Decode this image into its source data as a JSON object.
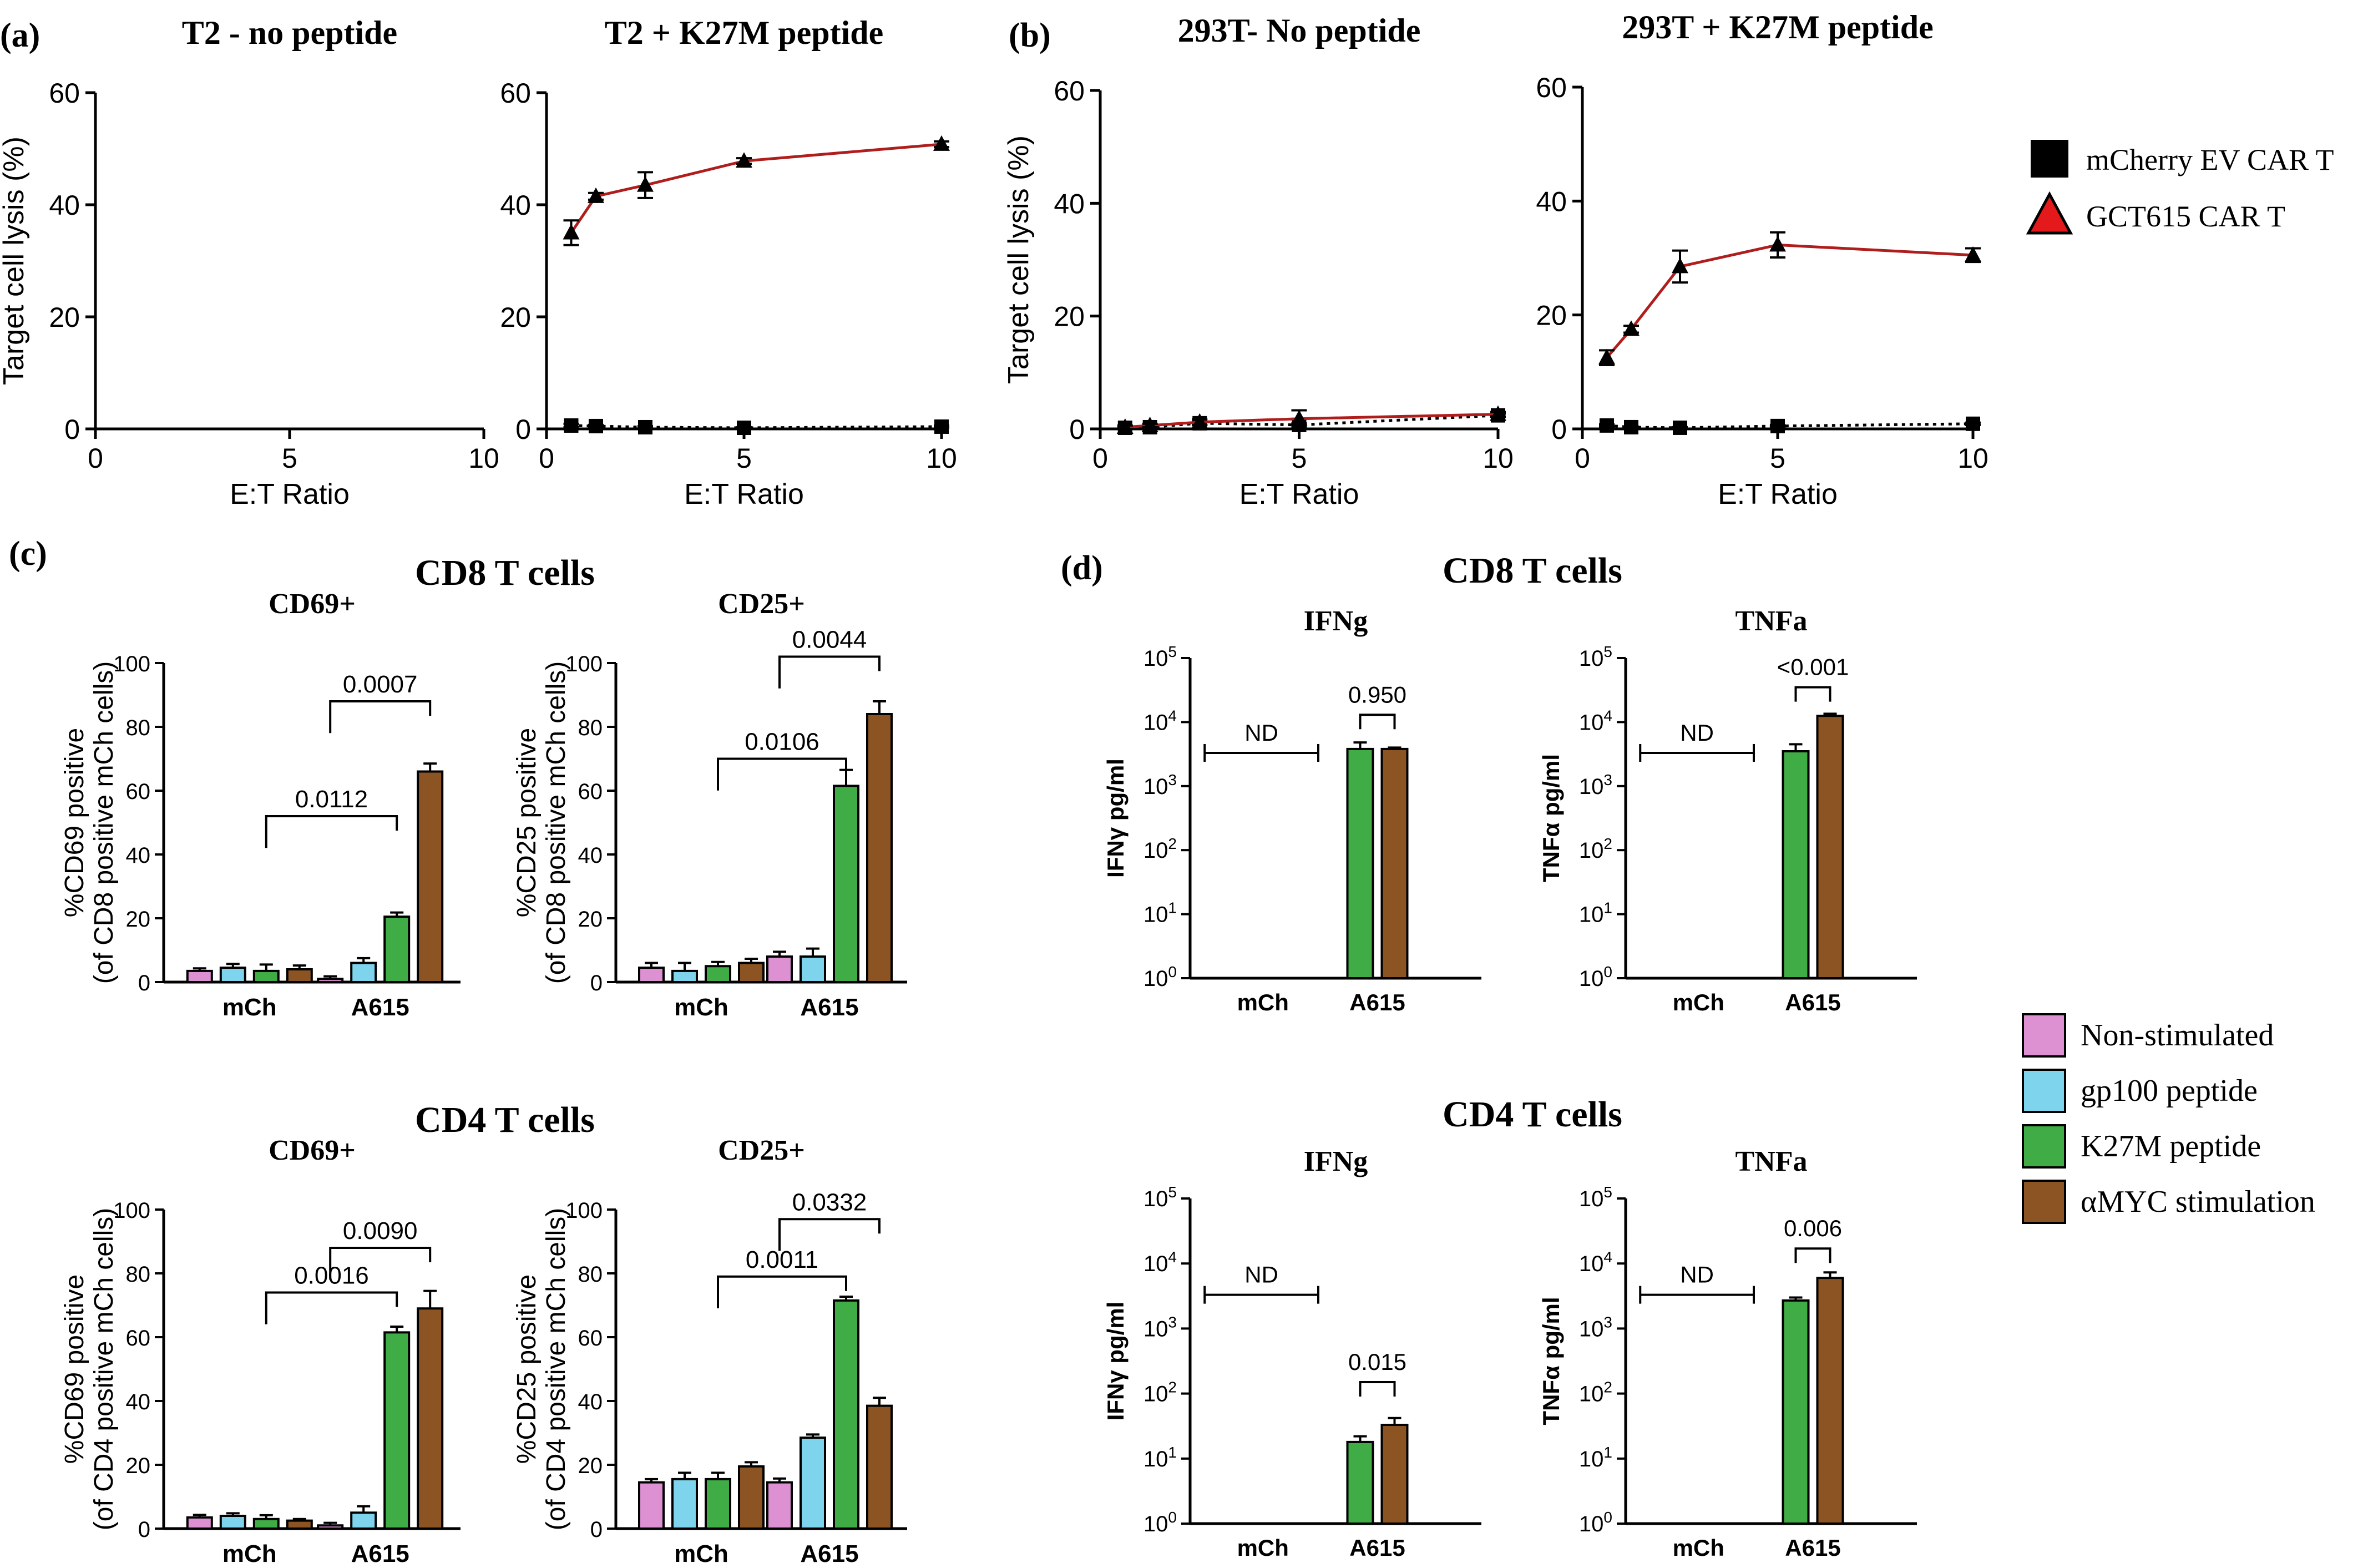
{
  "panel_labels": {
    "a": "(a)",
    "b": "(b)",
    "c": "(c)",
    "d": "(d)"
  },
  "section_titles": {
    "c_cd8": "CD8 T cells",
    "c_cd4": "CD4 T cells",
    "d_cd8": "CD8 T cells",
    "d_cd4": "CD4 T cells"
  },
  "legend_lysis": {
    "items": [
      {
        "label": "mCherry EV CAR T",
        "marker": "square",
        "color": "#000000"
      },
      {
        "label": "GCT615 CAR T",
        "marker": "triangle",
        "color": "#e3191b"
      }
    ]
  },
  "legend_groups": {
    "items": [
      {
        "label": "Non-stimulated",
        "color": "#dd90d2"
      },
      {
        "label": "gp100 peptide",
        "color": "#7dd4ec"
      },
      {
        "label": "K27M peptide",
        "color": "#3fac46"
      },
      {
        "label": "αMYC stimulation",
        "color": "#8b5422"
      }
    ]
  },
  "colors": {
    "red_line": "#b01d1d",
    "black": "#000000"
  },
  "chart_data": [
    {
      "id": "a1",
      "type": "line",
      "title": "T2 - no peptide",
      "xlabel": "E:T Ratio",
      "ylabel": "Target cell lysis (%)",
      "xlim": [
        0,
        10
      ],
      "ylim": [
        0,
        60
      ],
      "xticks": [
        0,
        5,
        10
      ],
      "yticks": [
        0,
        20,
        40,
        60
      ],
      "series": []
    },
    {
      "id": "a2",
      "type": "line",
      "title": "T2 + K27M peptide",
      "xlabel": "E:T Ratio",
      "ylabel": "",
      "xlim": [
        0,
        10
      ],
      "ylim": [
        0,
        60
      ],
      "xticks": [
        0,
        5,
        10
      ],
      "yticks": [
        0,
        20,
        40,
        60
      ],
      "series": [
        {
          "name": "GCT615 CAR T",
          "marker": "triangle",
          "line": "solid",
          "color": "#b01d1d",
          "x": [
            0.625,
            1.25,
            2.5,
            5,
            10
          ],
          "y": [
            35,
            41.5,
            43.5,
            47.8,
            50.8
          ],
          "err": [
            2.2,
            0.6,
            2.3,
            0.5,
            0.5
          ]
        },
        {
          "name": "mCherry EV CAR T",
          "marker": "square",
          "line": "dotted",
          "color": "#000000",
          "x": [
            0.625,
            1.25,
            2.5,
            5,
            10
          ],
          "y": [
            0.6,
            0.5,
            0.3,
            0.2,
            0.4
          ],
          "err": [
            0.3,
            0.2,
            0.2,
            0.1,
            0.2
          ]
        }
      ]
    },
    {
      "id": "b1",
      "type": "line",
      "title": "293T- No peptide",
      "xlabel": "E:T Ratio",
      "ylabel": "Target cell lysis (%)",
      "xlim": [
        0,
        10
      ],
      "ylim": [
        0,
        60
      ],
      "xticks": [
        0,
        5,
        10
      ],
      "yticks": [
        0,
        20,
        40,
        60
      ],
      "series": [
        {
          "name": "GCT615 CAR T",
          "marker": "triangle",
          "line": "solid",
          "color": "#b01d1d",
          "x": [
            0.625,
            1.25,
            2.5,
            5,
            10
          ],
          "y": [
            0.3,
            0.6,
            1.2,
            1.8,
            2.6
          ],
          "err": [
            0.3,
            0.3,
            0.5,
            1.5,
            0.4
          ]
        },
        {
          "name": "mCherry EV CAR T",
          "marker": "square",
          "line": "dotted",
          "color": "#000000",
          "x": [
            0.625,
            1.25,
            2.5,
            5,
            10
          ],
          "y": [
            0.2,
            0.3,
            1.0,
            0.7,
            2.4
          ],
          "err": [
            0.2,
            0.2,
            0.3,
            0.3,
            0.3
          ]
        }
      ]
    },
    {
      "id": "b2",
      "type": "line",
      "title": "293T + K27M peptide",
      "xlabel": "E:T Ratio",
      "ylabel": "",
      "xlim": [
        0,
        10
      ],
      "ylim": [
        0,
        60
      ],
      "xticks": [
        0,
        5,
        10
      ],
      "yticks": [
        0,
        20,
        40,
        60
      ],
      "series": [
        {
          "name": "GCT615 CAR T",
          "marker": "triangle",
          "line": "solid",
          "color": "#b01d1d",
          "x": [
            0.625,
            1.25,
            2.5,
            5,
            10
          ],
          "y": [
            12.5,
            17.5,
            28.5,
            32.3,
            30.5
          ],
          "err": [
            1.3,
            0.6,
            2.8,
            2.2,
            1.2
          ]
        },
        {
          "name": "mCherry EV CAR T",
          "marker": "square",
          "line": "dotted",
          "color": "#000000",
          "x": [
            0.625,
            1.25,
            2.5,
            5,
            10
          ],
          "y": [
            0.6,
            0.3,
            0.2,
            0.5,
            0.9
          ],
          "err": [
            0.2,
            0.1,
            0.1,
            0.2,
            0.2
          ]
        }
      ]
    },
    {
      "id": "c1",
      "type": "bar",
      "title": "CD69+",
      "ylabel": "%CD69 positive",
      "ylabel2": "(of CD8 positive mCh cells)",
      "ylim": [
        0,
        100
      ],
      "yticks": [
        0,
        20,
        40,
        60,
        80,
        100
      ],
      "categories": [
        "mCh",
        "A615"
      ],
      "series": [
        {
          "name": "Non-stimulated",
          "values": [
            3.5,
            1.0
          ],
          "err": [
            0.8,
            0.8
          ]
        },
        {
          "name": "gp100 peptide",
          "values": [
            4.5,
            6.0
          ],
          "err": [
            1.2,
            1.5
          ]
        },
        {
          "name": "K27M peptide",
          "values": [
            3.5,
            20.5
          ],
          "err": [
            2.0,
            1.3
          ]
        },
        {
          "name": "αMYC stimulation",
          "values": [
            4.0,
            66.0
          ],
          "err": [
            1.2,
            2.5
          ]
        }
      ],
      "brackets": [
        {
          "from": [
            0,
            2
          ],
          "to": [
            1,
            2
          ],
          "label": "0.0112",
          "level": 52
        },
        {
          "from": [
            1,
            0
          ],
          "to": [
            1,
            3
          ],
          "label": "0.0007",
          "level": 88
        }
      ]
    },
    {
      "id": "c2",
      "type": "bar",
      "title": "CD25+",
      "ylabel": "%CD25 positive",
      "ylabel2": "(of CD8 positive mCh cells)",
      "ylim": [
        0,
        100
      ],
      "yticks": [
        0,
        20,
        40,
        60,
        80,
        100
      ],
      "categories": [
        "mCh",
        "A615"
      ],
      "series": [
        {
          "name": "Non-stimulated",
          "values": [
            4.5,
            8.0
          ],
          "err": [
            1.5,
            1.5
          ]
        },
        {
          "name": "gp100 peptide",
          "values": [
            3.5,
            8.0
          ],
          "err": [
            2.5,
            2.5
          ]
        },
        {
          "name": "K27M peptide",
          "values": [
            5.0,
            61.5
          ],
          "err": [
            1.3,
            5.0
          ]
        },
        {
          "name": "αMYC stimulation",
          "values": [
            6.0,
            84.0
          ],
          "err": [
            1.3,
            4.0
          ]
        }
      ],
      "brackets": [
        {
          "from": [
            0,
            2
          ],
          "to": [
            1,
            2
          ],
          "label": "0.0106",
          "level": 70
        },
        {
          "from": [
            1,
            0
          ],
          "to": [
            1,
            3
          ],
          "label": "0.0044",
          "level": 102
        }
      ]
    },
    {
      "id": "c3",
      "type": "bar",
      "title": "CD69+",
      "ylabel": "%CD69 positive",
      "ylabel2": "(of CD4 positive mCh cells)",
      "ylim": [
        0,
        100
      ],
      "yticks": [
        0,
        20,
        40,
        60,
        80,
        100
      ],
      "categories": [
        "mCh",
        "A615"
      ],
      "series": [
        {
          "name": "Non-stimulated",
          "values": [
            3.5,
            1.0
          ],
          "err": [
            0.8,
            0.8
          ]
        },
        {
          "name": "gp100 peptide",
          "values": [
            4.0,
            5.0
          ],
          "err": [
            0.8,
            2.0
          ]
        },
        {
          "name": "K27M peptide",
          "values": [
            3.0,
            61.5
          ],
          "err": [
            1.2,
            1.8
          ]
        },
        {
          "name": "αMYC stimulation",
          "values": [
            2.5,
            69.0
          ],
          "err": [
            0.5,
            5.5
          ]
        }
      ],
      "brackets": [
        {
          "from": [
            0,
            2
          ],
          "to": [
            1,
            2
          ],
          "label": "0.0016",
          "level": 74
        },
        {
          "from": [
            1,
            0
          ],
          "to": [
            1,
            3
          ],
          "label": "0.0090",
          "level": 88
        }
      ]
    },
    {
      "id": "c4",
      "type": "bar",
      "title": "CD25+",
      "ylabel": "%CD25 positive",
      "ylabel2": "(of CD4 positive mCh cells)",
      "ylim": [
        0,
        100
      ],
      "yticks": [
        0,
        20,
        40,
        60,
        80,
        100
      ],
      "categories": [
        "mCh",
        "A615"
      ],
      "series": [
        {
          "name": "Non-stimulated",
          "values": [
            14.5,
            14.5
          ],
          "err": [
            1.0,
            1.2
          ]
        },
        {
          "name": "gp100 peptide",
          "values": [
            15.5,
            28.5
          ],
          "err": [
            2.0,
            1.0
          ]
        },
        {
          "name": "K27M peptide",
          "values": [
            15.5,
            71.5
          ],
          "err": [
            2.0,
            1.2
          ]
        },
        {
          "name": "αMYC stimulation",
          "values": [
            19.5,
            38.5
          ],
          "err": [
            1.3,
            2.5
          ]
        }
      ],
      "brackets": [
        {
          "from": [
            0,
            2
          ],
          "to": [
            1,
            2
          ],
          "label": "0.0011",
          "level": 79
        },
        {
          "from": [
            1,
            0
          ],
          "to": [
            1,
            3
          ],
          "label": "0.0332",
          "level": 97
        }
      ]
    },
    {
      "id": "d1",
      "type": "bar",
      "scale": "log",
      "title": "IFNg",
      "ylabel": "IFNγ pg/ml",
      "ylim_exp": [
        0,
        5
      ],
      "yticks_exp": [
        0,
        1,
        2,
        3,
        4,
        5
      ],
      "categories": [
        "mCh",
        "A615"
      ],
      "series": [
        {
          "name": "K27M peptide",
          "values": [
            null,
            3800
          ],
          "err_hi": [
            null,
            4800
          ]
        },
        {
          "name": "αMYC stimulation",
          "values": [
            null,
            3800
          ],
          "err_hi": [
            null,
            4000
          ]
        }
      ],
      "nd": {
        "label": "ND",
        "level": 3300
      },
      "bracket": {
        "label": "0.950",
        "level": 13000
      }
    },
    {
      "id": "d2",
      "type": "bar",
      "scale": "log",
      "title": "TNFa",
      "ylabel": "TNFα pg/ml",
      "ylim_exp": [
        0,
        5
      ],
      "yticks_exp": [
        0,
        1,
        2,
        3,
        4,
        5
      ],
      "categories": [
        "mCh",
        "A615"
      ],
      "series": [
        {
          "name": "K27M peptide",
          "values": [
            null,
            3500
          ],
          "err_hi": [
            null,
            4500
          ]
        },
        {
          "name": "αMYC stimulation",
          "values": [
            null,
            12500
          ],
          "err_hi": [
            null,
            13500
          ]
        }
      ],
      "nd": {
        "label": "ND",
        "level": 3300
      },
      "bracket": {
        "label": "<0.001",
        "level": 35000
      }
    },
    {
      "id": "d3",
      "type": "bar",
      "scale": "log",
      "title": "IFNg",
      "ylabel": "IFNγ pg/ml",
      "ylim_exp": [
        0,
        5
      ],
      "yticks_exp": [
        0,
        1,
        2,
        3,
        4,
        5
      ],
      "categories": [
        "mCh",
        "A615"
      ],
      "series": [
        {
          "name": "K27M peptide",
          "values": [
            null,
            18
          ],
          "err_hi": [
            null,
            22
          ]
        },
        {
          "name": "αMYC stimulation",
          "values": [
            null,
            33
          ],
          "err_hi": [
            null,
            42
          ]
        }
      ],
      "nd": {
        "label": "ND",
        "level": 3300
      },
      "bracket": {
        "label": "0.015",
        "level": 150
      }
    },
    {
      "id": "d4",
      "type": "bar",
      "scale": "log",
      "title": "TNFa",
      "ylabel": "TNFα pg/ml",
      "ylim_exp": [
        0,
        5
      ],
      "yticks_exp": [
        0,
        1,
        2,
        3,
        4,
        5
      ],
      "categories": [
        "mCh",
        "A615"
      ],
      "series": [
        {
          "name": "K27M peptide",
          "values": [
            null,
            2700
          ],
          "err_hi": [
            null,
            3000
          ]
        },
        {
          "name": "αMYC stimulation",
          "values": [
            null,
            6000
          ],
          "err_hi": [
            null,
            7300
          ]
        }
      ],
      "nd": {
        "label": "ND",
        "level": 3300
      },
      "bracket": {
        "label": "0.006",
        "level": 17000
      }
    }
  ]
}
